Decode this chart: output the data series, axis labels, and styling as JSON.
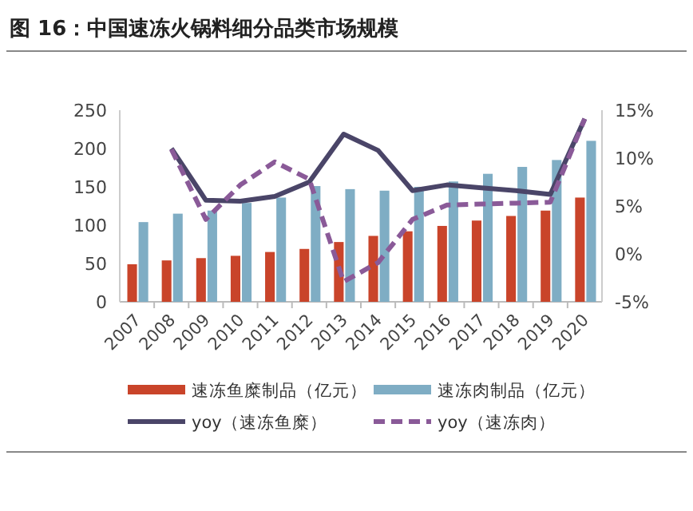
{
  "chart_data": {
    "type": "bar",
    "title": "图 16：中国速冻火锅料细分品类市场规模",
    "categories": [
      "2007",
      "2008",
      "2009",
      "2010",
      "2011",
      "2012",
      "2013",
      "2014",
      "2015",
      "2016",
      "2017",
      "2018",
      "2019",
      "2020"
    ],
    "series": [
      {
        "name": "速冻鱼糜制品（亿元）",
        "color": "#c9442a",
        "values": [
          49,
          54,
          57,
          60,
          65,
          69,
          78,
          86,
          92,
          99,
          106,
          112,
          119,
          136
        ]
      },
      {
        "name": "速冻肉制品（亿元）",
        "color": "#7fadc4",
        "values": [
          104,
          115,
          119,
          129,
          136,
          151,
          147,
          145,
          150,
          157,
          167,
          176,
          185,
          210
        ]
      },
      {
        "name": "yoy（速冻鱼糜）",
        "type": "line",
        "axis": "y2",
        "color": "#4a4568",
        "line_style": "solid",
        "values": [
          null,
          11.0,
          5.6,
          5.5,
          6.0,
          7.5,
          12.5,
          10.8,
          6.6,
          7.2,
          6.9,
          6.6,
          6.2,
          14.1
        ]
      },
      {
        "name": "yoy（速冻肉）",
        "type": "line",
        "axis": "y2",
        "color": "#8a5a98",
        "line_style": "dashed",
        "values": [
          null,
          10.9,
          3.6,
          7.2,
          9.6,
          7.8,
          -2.9,
          -0.9,
          3.6,
          5.1,
          5.2,
          5.3,
          5.4,
          14.1
        ]
      }
    ],
    "ylim": [
      0,
      250
    ],
    "yticks": [
      0,
      50,
      100,
      150,
      200,
      250
    ],
    "y2lim": [
      -5,
      15
    ],
    "y2ticks": [
      {
        "value": -5,
        "label": "-5%"
      },
      {
        "value": 0,
        "label": "0%"
      },
      {
        "value": 5,
        "label": "5%"
      },
      {
        "value": 10,
        "label": "10%"
      },
      {
        "value": 15,
        "label": "15%"
      }
    ],
    "grid": false,
    "legend": "bottom",
    "marker": "none"
  }
}
